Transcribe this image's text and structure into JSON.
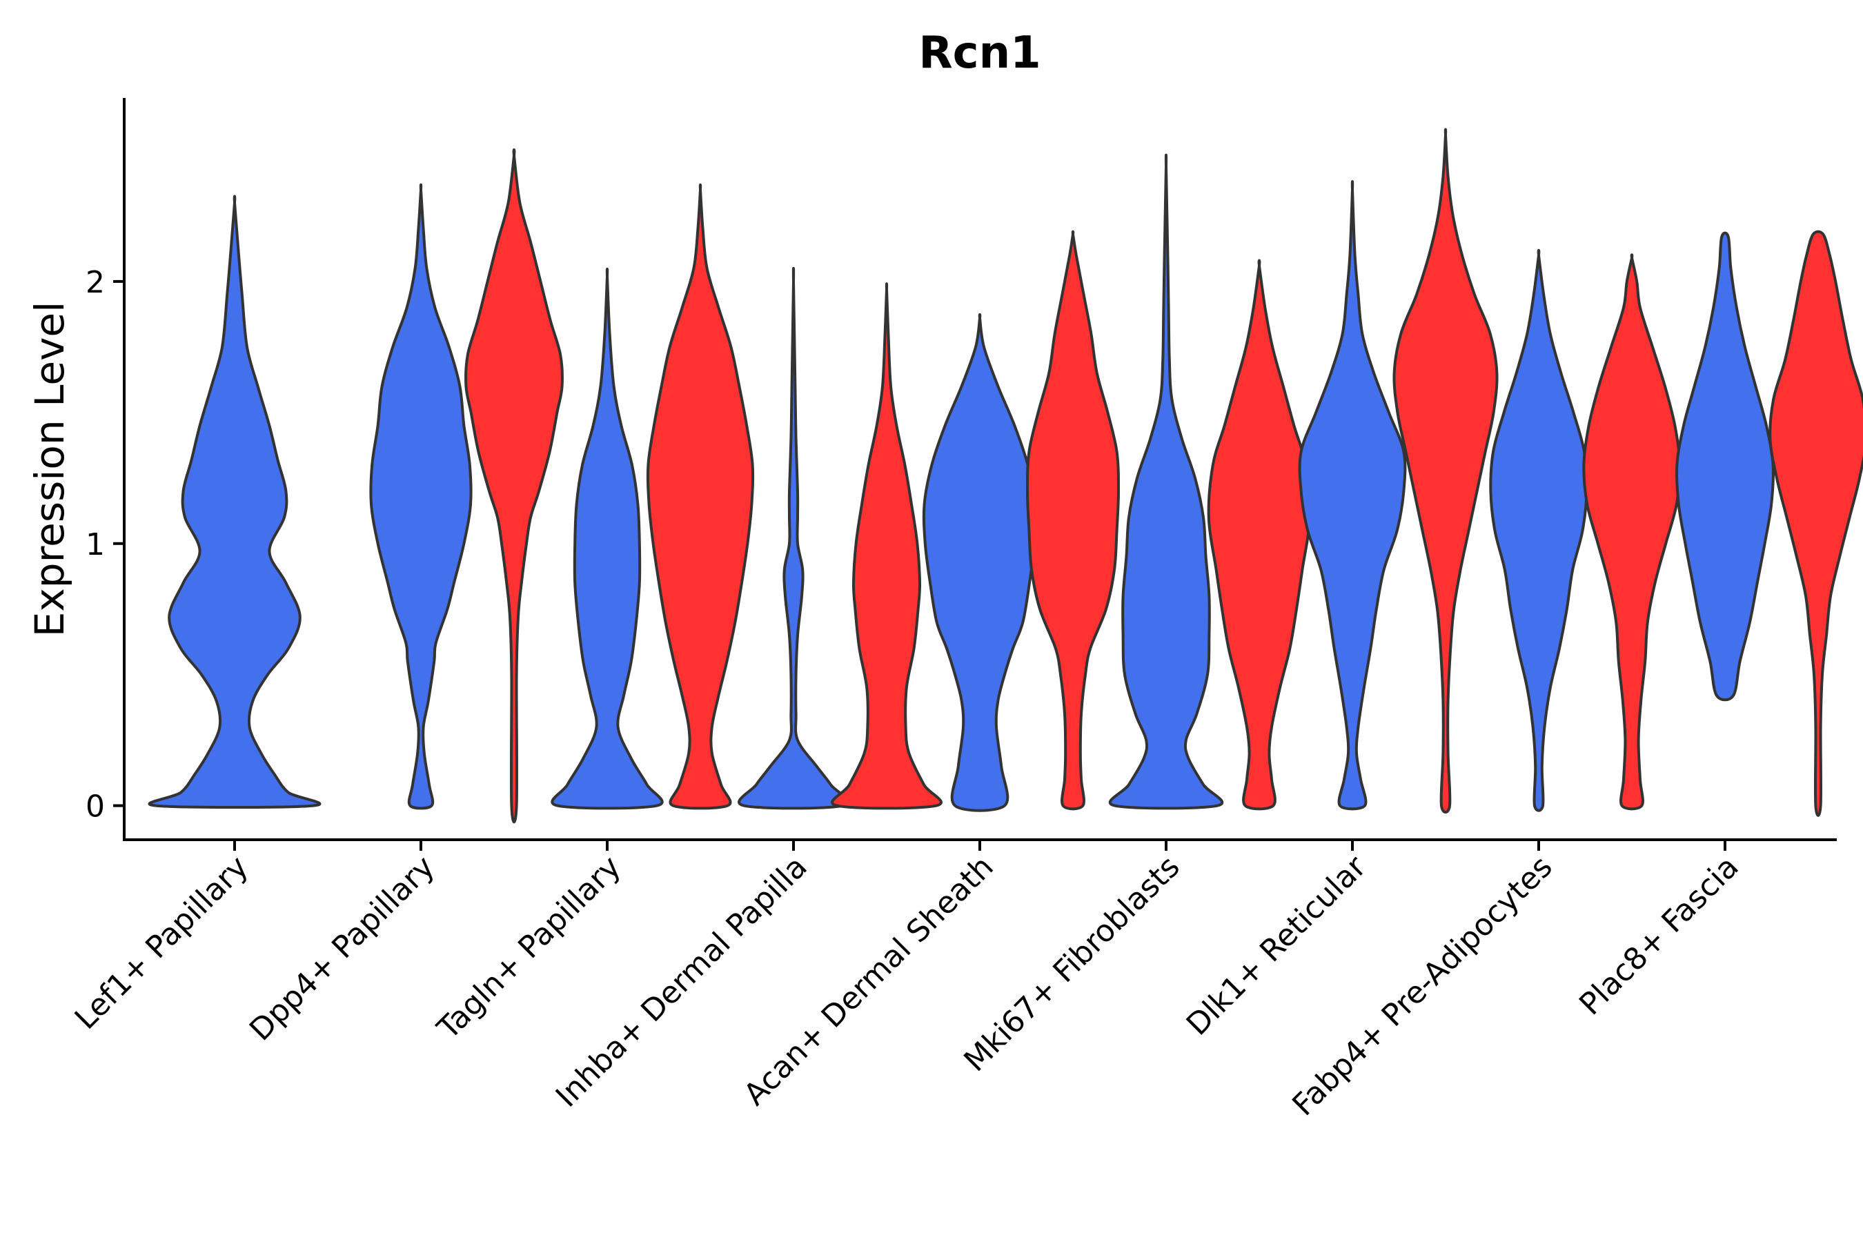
{
  "chart_data": {
    "type": "violin",
    "title": "Rcn1",
    "xlabel": "",
    "ylabel": "Expression Level",
    "ylim": [
      -0.13,
      2.7
    ],
    "yticks": [
      0,
      1,
      2
    ],
    "ytick_labels": [
      "0",
      "1",
      "2"
    ],
    "grid": false,
    "legend": "none",
    "colors": {
      "group_a": "#4370EC",
      "group_b": "#FF3131",
      "outline": "#333333"
    },
    "categories": [
      "Lef1+ Papillary",
      "Dpp4+ Papillary",
      "Tagln+ Papillary",
      "Inhba+ Dermal Papilla",
      "Acan+ Dermal Sheath",
      "Mki67+ Fibroblasts",
      "Dlk1+ Reticular",
      "Fabp4+ Pre-Adipocytes",
      "Plac8+ Fascia"
    ],
    "violins": [
      {
        "name": "Lef1+ Papillary A",
        "group": "A",
        "slot": 0.0,
        "max": 2.3,
        "profile": [
          [
            0,
            0.95
          ],
          [
            0.05,
            0.65
          ],
          [
            0.12,
            0.48
          ],
          [
            0.2,
            0.32
          ],
          [
            0.3,
            0.18
          ],
          [
            0.4,
            0.22
          ],
          [
            0.5,
            0.4
          ],
          [
            0.6,
            0.65
          ],
          [
            0.72,
            0.79
          ],
          [
            0.85,
            0.62
          ],
          [
            0.97,
            0.42
          ],
          [
            1.1,
            0.6
          ],
          [
            1.2,
            0.62
          ],
          [
            1.32,
            0.52
          ],
          [
            1.45,
            0.42
          ],
          [
            1.6,
            0.28
          ],
          [
            1.75,
            0.15
          ],
          [
            1.95,
            0.09
          ],
          [
            2.1,
            0.05
          ],
          [
            2.3,
            0.0
          ]
        ]
      },
      {
        "name": "Dpp4+ Papillary A",
        "group": "A",
        "slot": 1.0,
        "max": 2.35,
        "profile": [
          [
            0,
            0.13
          ],
          [
            0.08,
            0.1
          ],
          [
            0.2,
            0.04
          ],
          [
            0.3,
            0.03
          ],
          [
            0.4,
            0.09
          ],
          [
            0.55,
            0.16
          ],
          [
            0.62,
            0.18
          ],
          [
            0.75,
            0.32
          ],
          [
            0.85,
            0.4
          ],
          [
            1.0,
            0.52
          ],
          [
            1.15,
            0.6
          ],
          [
            1.3,
            0.59
          ],
          [
            1.45,
            0.52
          ],
          [
            1.6,
            0.47
          ],
          [
            1.75,
            0.34
          ],
          [
            1.9,
            0.17
          ],
          [
            2.05,
            0.07
          ],
          [
            2.2,
            0.03
          ],
          [
            2.35,
            0.0
          ]
        ]
      },
      {
        "name": "Dpp4+ Papillary B",
        "group": "B",
        "slot": 1.5,
        "max": 2.48,
        "profile": [
          [
            0,
            0.03
          ],
          [
            0.5,
            0.03
          ],
          [
            0.72,
            0.05
          ],
          [
            0.85,
            0.09
          ],
          [
            1.0,
            0.15
          ],
          [
            1.1,
            0.2
          ],
          [
            1.2,
            0.3
          ],
          [
            1.35,
            0.43
          ],
          [
            1.5,
            0.52
          ],
          [
            1.6,
            0.58
          ],
          [
            1.72,
            0.56
          ],
          [
            1.85,
            0.44
          ],
          [
            2.0,
            0.32
          ],
          [
            2.15,
            0.2
          ],
          [
            2.3,
            0.07
          ],
          [
            2.48,
            0.0
          ]
        ]
      },
      {
        "name": "Tagln+ Papillary A",
        "group": "A",
        "slot": 2.0,
        "max": 2.02,
        "profile": [
          [
            0,
            0.6
          ],
          [
            0.08,
            0.48
          ],
          [
            0.18,
            0.29
          ],
          [
            0.3,
            0.13
          ],
          [
            0.42,
            0.2
          ],
          [
            0.55,
            0.29
          ],
          [
            0.7,
            0.35
          ],
          [
            0.85,
            0.39
          ],
          [
            1.0,
            0.39
          ],
          [
            1.15,
            0.37
          ],
          [
            1.3,
            0.3
          ],
          [
            1.45,
            0.17
          ],
          [
            1.6,
            0.08
          ],
          [
            1.8,
            0.03
          ],
          [
            2.02,
            0.0
          ]
        ]
      },
      {
        "name": "Tagln+ Papillary B",
        "group": "B",
        "slot": 2.5,
        "max": 2.35,
        "profile": [
          [
            0,
            0.33
          ],
          [
            0.08,
            0.25
          ],
          [
            0.2,
            0.14
          ],
          [
            0.3,
            0.14
          ],
          [
            0.42,
            0.22
          ],
          [
            0.55,
            0.32
          ],
          [
            0.7,
            0.42
          ],
          [
            0.85,
            0.5
          ],
          [
            1.0,
            0.57
          ],
          [
            1.15,
            0.62
          ],
          [
            1.3,
            0.63
          ],
          [
            1.45,
            0.56
          ],
          [
            1.6,
            0.47
          ],
          [
            1.75,
            0.37
          ],
          [
            1.9,
            0.22
          ],
          [
            2.05,
            0.08
          ],
          [
            2.2,
            0.03
          ],
          [
            2.35,
            0.0
          ]
        ]
      },
      {
        "name": "Inhba+ Dermal Papilla A",
        "group": "A",
        "slot": 3.0,
        "max": 2.0,
        "profile": [
          [
            0,
            0.6
          ],
          [
            0.08,
            0.45
          ],
          [
            0.15,
            0.28
          ],
          [
            0.25,
            0.05
          ],
          [
            0.35,
            0.03
          ],
          [
            0.5,
            0.03
          ],
          [
            0.65,
            0.05
          ],
          [
            0.8,
            0.1
          ],
          [
            0.9,
            0.11
          ],
          [
            1.0,
            0.05
          ],
          [
            1.1,
            0.05
          ],
          [
            1.2,
            0.05
          ],
          [
            1.4,
            0.03
          ],
          [
            1.6,
            0.02
          ],
          [
            2.0,
            0.0
          ]
        ]
      },
      {
        "name": "Inhba+ Dermal Papilla B",
        "group": "B",
        "slot": 3.5,
        "max": 1.97,
        "profile": [
          [
            0,
            0.6
          ],
          [
            0.08,
            0.45
          ],
          [
            0.2,
            0.27
          ],
          [
            0.3,
            0.23
          ],
          [
            0.45,
            0.24
          ],
          [
            0.6,
            0.33
          ],
          [
            0.75,
            0.38
          ],
          [
            0.85,
            0.4
          ],
          [
            1.0,
            0.37
          ],
          [
            1.15,
            0.3
          ],
          [
            1.3,
            0.22
          ],
          [
            1.45,
            0.12
          ],
          [
            1.6,
            0.05
          ],
          [
            1.8,
            0.02
          ],
          [
            1.97,
            0.0
          ]
        ]
      },
      {
        "name": "Acan+ Dermal Sheath A",
        "group": "A",
        "slot": 4.0,
        "max": 1.86,
        "profile": [
          [
            0,
            0.3
          ],
          [
            0.15,
            0.26
          ],
          [
            0.3,
            0.2
          ],
          [
            0.4,
            0.22
          ],
          [
            0.5,
            0.3
          ],
          [
            0.6,
            0.4
          ],
          [
            0.7,
            0.52
          ],
          [
            0.85,
            0.6
          ],
          [
            1.0,
            0.66
          ],
          [
            1.15,
            0.67
          ],
          [
            1.3,
            0.58
          ],
          [
            1.45,
            0.42
          ],
          [
            1.6,
            0.22
          ],
          [
            1.75,
            0.05
          ],
          [
            1.86,
            0.0
          ]
        ]
      },
      {
        "name": "Acan+ Dermal Sheath B",
        "group": "B",
        "slot": 4.5,
        "max": 2.18,
        "profile": [
          [
            0,
            0.12
          ],
          [
            0.1,
            0.1
          ],
          [
            0.2,
            0.09
          ],
          [
            0.35,
            0.1
          ],
          [
            0.5,
            0.15
          ],
          [
            0.6,
            0.21
          ],
          [
            0.75,
            0.4
          ],
          [
            0.9,
            0.5
          ],
          [
            1.05,
            0.53
          ],
          [
            1.2,
            0.55
          ],
          [
            1.35,
            0.53
          ],
          [
            1.5,
            0.42
          ],
          [
            1.65,
            0.29
          ],
          [
            1.8,
            0.22
          ],
          [
            1.95,
            0.13
          ],
          [
            2.1,
            0.04
          ],
          [
            2.18,
            0.0
          ]
        ]
      },
      {
        "name": "Mki67+ Fibroblasts A",
        "group": "A",
        "slot": 5.0,
        "max": 2.44,
        "profile": [
          [
            0,
            0.62
          ],
          [
            0.08,
            0.45
          ],
          [
            0.18,
            0.27
          ],
          [
            0.25,
            0.24
          ],
          [
            0.35,
            0.37
          ],
          [
            0.5,
            0.5
          ],
          [
            0.65,
            0.52
          ],
          [
            0.8,
            0.52
          ],
          [
            0.95,
            0.48
          ],
          [
            1.1,
            0.45
          ],
          [
            1.25,
            0.35
          ],
          [
            1.4,
            0.19
          ],
          [
            1.55,
            0.07
          ],
          [
            1.7,
            0.04
          ],
          [
            1.9,
            0.03
          ],
          [
            2.1,
            0.02
          ],
          [
            2.44,
            0.0
          ]
        ]
      },
      {
        "name": "Mki67+ Fibroblasts B",
        "group": "B",
        "slot": 5.5,
        "max": 2.06,
        "profile": [
          [
            0,
            0.17
          ],
          [
            0.1,
            0.15
          ],
          [
            0.2,
            0.12
          ],
          [
            0.3,
            0.15
          ],
          [
            0.45,
            0.25
          ],
          [
            0.6,
            0.37
          ],
          [
            0.75,
            0.45
          ],
          [
            0.9,
            0.52
          ],
          [
            1.1,
            0.61
          ],
          [
            1.3,
            0.56
          ],
          [
            1.45,
            0.42
          ],
          [
            1.6,
            0.29
          ],
          [
            1.75,
            0.16
          ],
          [
            1.9,
            0.07
          ],
          [
            2.06,
            0.0
          ]
        ]
      },
      {
        "name": "Dlk1+ Reticular A",
        "group": "A",
        "slot": 6.0,
        "max": 2.35,
        "profile": [
          [
            0,
            0.15
          ],
          [
            0.1,
            0.1
          ],
          [
            0.2,
            0.05
          ],
          [
            0.3,
            0.07
          ],
          [
            0.45,
            0.14
          ],
          [
            0.6,
            0.22
          ],
          [
            0.75,
            0.29
          ],
          [
            0.9,
            0.38
          ],
          [
            1.05,
            0.54
          ],
          [
            1.2,
            0.62
          ],
          [
            1.35,
            0.62
          ],
          [
            1.5,
            0.44
          ],
          [
            1.65,
            0.26
          ],
          [
            1.8,
            0.12
          ],
          [
            1.95,
            0.07
          ],
          [
            2.1,
            0.03
          ],
          [
            2.35,
            0.0
          ]
        ]
      },
      {
        "name": "Dlk1+ Reticular B",
        "group": "B",
        "slot": 6.5,
        "max": 2.56,
        "profile": [
          [
            0,
            0.05
          ],
          [
            0.2,
            0.03
          ],
          [
            0.4,
            0.03
          ],
          [
            0.6,
            0.06
          ],
          [
            0.75,
            0.1
          ],
          [
            0.9,
            0.18
          ],
          [
            1.05,
            0.28
          ],
          [
            1.2,
            0.38
          ],
          [
            1.35,
            0.48
          ],
          [
            1.5,
            0.58
          ],
          [
            1.65,
            0.62
          ],
          [
            1.8,
            0.54
          ],
          [
            1.95,
            0.35
          ],
          [
            2.1,
            0.2
          ],
          [
            2.25,
            0.09
          ],
          [
            2.4,
            0.03
          ],
          [
            2.56,
            0.0
          ]
        ]
      },
      {
        "name": "Fabp4+ Pre-Adipocytes A",
        "group": "A",
        "slot": 7.0,
        "max": 2.1,
        "profile": [
          [
            0,
            0.05
          ],
          [
            0.15,
            0.04
          ],
          [
            0.3,
            0.07
          ],
          [
            0.45,
            0.14
          ],
          [
            0.6,
            0.25
          ],
          [
            0.75,
            0.34
          ],
          [
            0.9,
            0.41
          ],
          [
            1.05,
            0.53
          ],
          [
            1.2,
            0.58
          ],
          [
            1.35,
            0.55
          ],
          [
            1.5,
            0.42
          ],
          [
            1.65,
            0.27
          ],
          [
            1.8,
            0.14
          ],
          [
            1.95,
            0.06
          ],
          [
            2.1,
            0.0
          ]
        ]
      },
      {
        "name": "Fabp4+ Pre-Adipocytes B",
        "group": "B",
        "slot": 7.5,
        "max": 2.09,
        "profile": [
          [
            0,
            0.12
          ],
          [
            0.1,
            0.1
          ],
          [
            0.25,
            0.08
          ],
          [
            0.4,
            0.11
          ],
          [
            0.55,
            0.16
          ],
          [
            0.7,
            0.19
          ],
          [
            0.85,
            0.28
          ],
          [
            1.0,
            0.41
          ],
          [
            1.15,
            0.54
          ],
          [
            1.3,
            0.58
          ],
          [
            1.45,
            0.52
          ],
          [
            1.6,
            0.4
          ],
          [
            1.75,
            0.25
          ],
          [
            1.9,
            0.1
          ],
          [
            2.0,
            0.06
          ],
          [
            2.09,
            0.0
          ]
        ]
      },
      {
        "name": "Plac8+ Fascia A",
        "group": "A",
        "slot": 8.0,
        "max": 2.17,
        "profile": [
          [
            0.42,
            0.1
          ],
          [
            0.55,
            0.18
          ],
          [
            0.7,
            0.3
          ],
          [
            0.85,
            0.39
          ],
          [
            1.0,
            0.48
          ],
          [
            1.15,
            0.56
          ],
          [
            1.3,
            0.58
          ],
          [
            1.45,
            0.5
          ],
          [
            1.6,
            0.37
          ],
          [
            1.75,
            0.24
          ],
          [
            1.9,
            0.14
          ],
          [
            2.05,
            0.07
          ],
          [
            2.17,
            0.04
          ]
        ]
      },
      {
        "name": "Plac8+ Fascia B",
        "group": "B",
        "slot": 8.5,
        "max": 2.18,
        "profile": [
          [
            0,
            0.03
          ],
          [
            0.3,
            0.03
          ],
          [
            0.5,
            0.05
          ],
          [
            0.65,
            0.1
          ],
          [
            0.8,
            0.15
          ],
          [
            0.95,
            0.26
          ],
          [
            1.1,
            0.38
          ],
          [
            1.25,
            0.5
          ],
          [
            1.4,
            0.58
          ],
          [
            1.55,
            0.54
          ],
          [
            1.7,
            0.4
          ],
          [
            1.85,
            0.3
          ],
          [
            2.0,
            0.21
          ],
          [
            2.1,
            0.14
          ],
          [
            2.18,
            0.06
          ]
        ]
      }
    ]
  }
}
